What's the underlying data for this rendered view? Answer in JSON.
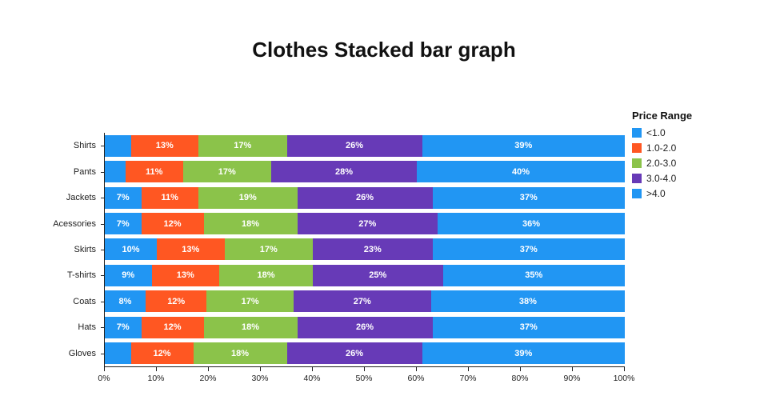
{
  "title": "Clothes Stacked bar graph",
  "legend": {
    "title": "Price Range"
  },
  "chart_data": {
    "type": "bar",
    "orientation": "horizontal",
    "stacked": true,
    "title": "Clothes Stacked bar graph",
    "xlabel": "",
    "ylabel": "",
    "xlim": [
      0,
      100
    ],
    "grid": false,
    "legend_title": "Price Range",
    "legend_position": "right",
    "categories": [
      "Shirts",
      "Pants",
      "Jackets",
      "Acessories",
      "Skirts",
      "T-shirts",
      "Coats",
      "Hats",
      "Gloves"
    ],
    "x_ticks": [
      "0%",
      "10%",
      "20%",
      "30%",
      "40%",
      "50%",
      "60%",
      "70%",
      "80%",
      "90%",
      "100%"
    ],
    "series": [
      {
        "name": "<1.0",
        "color": "#2196F3",
        "values": [
          5,
          4,
          7,
          7,
          10,
          9,
          8,
          7,
          5
        ],
        "labels": [
          "",
          "",
          "7%",
          "7%",
          "10%",
          "9%",
          "8%",
          "7%",
          ""
        ]
      },
      {
        "name": "1.0-2.0",
        "color": "#FF5722",
        "values": [
          13,
          11,
          11,
          12,
          13,
          13,
          12,
          12,
          12
        ],
        "labels": [
          "13%",
          "11%",
          "11%",
          "12%",
          "13%",
          "13%",
          "12%",
          "12%",
          "12%"
        ]
      },
      {
        "name": "2.0-3.0",
        "color": "#8BC34A",
        "values": [
          17,
          17,
          19,
          18,
          17,
          18,
          17,
          18,
          18
        ],
        "labels": [
          "17%",
          "17%",
          "19%",
          "18%",
          "17%",
          "18%",
          "17%",
          "18%",
          "18%"
        ]
      },
      {
        "name": "3.0-4.0",
        "color": "#673AB7",
        "values": [
          26,
          28,
          26,
          27,
          23,
          25,
          27,
          26,
          26
        ],
        "labels": [
          "26%",
          "28%",
          "26%",
          "27%",
          "23%",
          "25%",
          "27%",
          "26%",
          "26%"
        ]
      },
      {
        "name": ">4.0",
        "color": "#2196F3",
        "values": [
          39,
          40,
          37,
          36,
          37,
          35,
          38,
          37,
          39
        ],
        "labels": [
          "39%",
          "40%",
          "37%",
          "36%",
          "37%",
          "35%",
          "38%",
          "37%",
          "39%"
        ]
      }
    ]
  }
}
